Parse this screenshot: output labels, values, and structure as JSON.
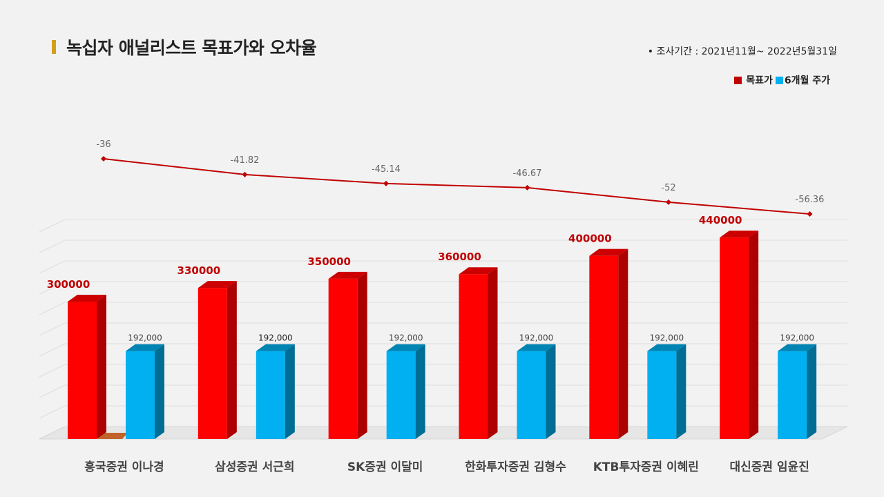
{
  "title": "녹십자 애널리스트 목표가와 오차율",
  "period": "•  조사기간 : 2021년11월~ 2022년5월31일",
  "legend": [
    {
      "name": "목표가",
      "color": "#ff0000"
    },
    {
      "name": "6개월 주가",
      "color": "#00b0f0"
    }
  ],
  "chart_data": {
    "type": "bar",
    "categories": [
      "흥국증권 이나경",
      "삼성증권 서근희",
      "SK증권 이달미",
      "한화투자증권 김형수",
      "KTB투자증권 이혜린",
      "대신증권 임윤진"
    ],
    "series": [
      {
        "name": "목표가",
        "values": [
          300000,
          330000,
          350000,
          360000,
          400000,
          440000
        ],
        "labels": [
          "300000",
          "330000",
          "350000",
          "360000",
          "400000",
          "440000"
        ],
        "color": "#ff0000"
      },
      {
        "name": "6개월 주가",
        "values": [
          192000,
          192000,
          192000,
          192000,
          192000,
          192000
        ],
        "labels": [
          "192,000",
          "192,000",
          "192,000",
          "192,000",
          "192,000",
          "192,000"
        ],
        "color": "#00b0f0"
      }
    ],
    "line_series": {
      "name": "오차율",
      "values": [
        -36,
        -41.82,
        -45.14,
        -46.67,
        -52,
        -56.36
      ],
      "labels": [
        "-36",
        "-41.82",
        "-45.14",
        "-46.67",
        "-52",
        "-56.36"
      ],
      "color": "#c00000"
    },
    "ylim": [
      0,
      480000
    ],
    "grid": true,
    "legend_position": "top-right"
  }
}
